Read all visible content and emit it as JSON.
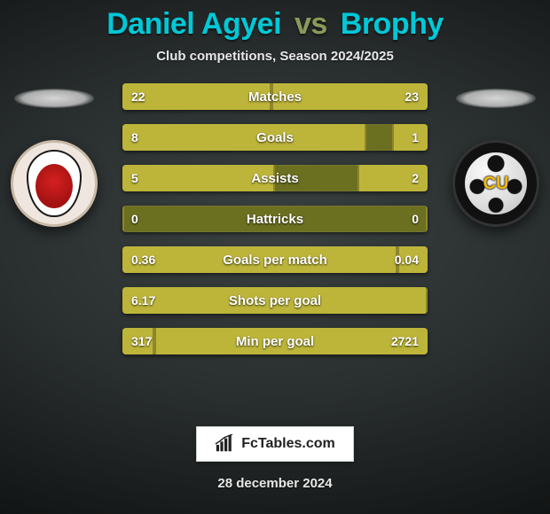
{
  "title": {
    "player1": "Daniel Agyei",
    "vs": "vs",
    "player2": "Brophy"
  },
  "subtitle": "Club competitions, Season 2024/2025",
  "crest_right_tag": "CU",
  "colors": {
    "bar_track": "#6b6f20",
    "bar_fill": "#bdb53a",
    "title_player": "#00c8d7",
    "title_vs": "#8a9a5a",
    "text": "#e8e8e8"
  },
  "rows": [
    {
      "label": "Matches",
      "left": "22",
      "right": "23",
      "pctL": 48.9,
      "pctR": 51.1
    },
    {
      "label": "Goals",
      "left": "8",
      "right": "1",
      "pctL": 80.0,
      "pctR": 11.5
    },
    {
      "label": "Assists",
      "left": "5",
      "right": "2",
      "pctL": 50.0,
      "pctR": 23.0
    },
    {
      "label": "Hattricks",
      "left": "0",
      "right": "0",
      "pctL": 0.0,
      "pctR": 0.0
    },
    {
      "label": "Goals per match",
      "left": "0.36",
      "right": "0.04",
      "pctL": 90.0,
      "pctR": 10.0
    },
    {
      "label": "Shots per goal",
      "left": "6.17",
      "right": "",
      "pctL": 100.0,
      "pctR": 0.0
    },
    {
      "label": "Min per goal",
      "left": "317",
      "right": "2721",
      "pctL": 10.4,
      "pctR": 89.6
    }
  ],
  "brand": "FcTables.com",
  "date": "28 december 2024"
}
